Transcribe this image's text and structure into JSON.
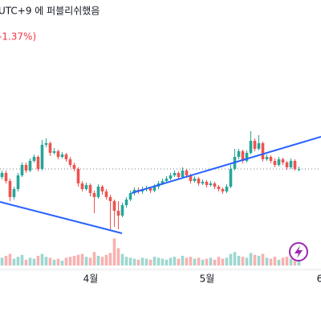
{
  "header": {
    "published": "UTC+9 에 퍼블리쉬했음",
    "change": "-1.37%)"
  },
  "chart_data": {
    "type": "candlestick",
    "up_color": "#26a69a",
    "down_color": "#ef5350",
    "xlim": [
      -0.5,
      79.5
    ],
    "ylim": [
      75,
      400
    ],
    "vlim": [
      0,
      50
    ],
    "xticks": [
      {
        "value": 22.1,
        "label": "4월"
      },
      {
        "value": 51.1,
        "label": "5월"
      },
      {
        "value": 79.2,
        "label": "6"
      }
    ],
    "candles": [
      [
        180,
        188,
        177,
        185
      ],
      [
        185,
        188,
        172,
        175
      ],
      [
        175,
        178,
        150,
        155
      ],
      [
        155,
        168,
        152,
        165
      ],
      [
        165,
        185,
        162,
        182
      ],
      [
        182,
        198,
        180,
        195
      ],
      [
        195,
        198,
        185,
        188
      ],
      [
        188,
        203,
        186,
        200
      ],
      [
        200,
        208,
        198,
        205
      ],
      [
        205,
        207,
        187,
        190
      ],
      [
        190,
        226,
        188,
        220
      ],
      [
        220,
        228,
        217,
        222
      ],
      [
        222,
        224,
        206,
        210
      ],
      [
        210,
        216,
        208,
        212
      ],
      [
        212,
        214,
        202,
        205
      ],
      [
        205,
        211,
        203,
        208
      ],
      [
        208,
        210,
        199,
        202
      ],
      [
        202,
        205,
        192,
        195
      ],
      [
        195,
        198,
        187,
        190
      ],
      [
        190,
        192,
        168,
        172
      ],
      [
        172,
        175,
        162,
        165
      ],
      [
        165,
        173,
        163,
        170
      ],
      [
        170,
        172,
        156,
        160
      ],
      [
        160,
        163,
        135,
        155
      ],
      [
        155,
        171,
        153,
        168
      ],
      [
        168,
        170,
        158,
        162
      ],
      [
        162,
        165,
        152,
        155
      ],
      [
        155,
        158,
        115,
        150
      ],
      [
        150,
        152,
        118,
        138
      ],
      [
        138,
        150,
        115,
        132
      ],
      [
        132,
        148,
        130,
        145
      ],
      [
        145,
        155,
        142,
        152
      ],
      [
        152,
        163,
        150,
        160
      ],
      [
        160,
        167,
        157,
        164
      ],
      [
        164,
        167,
        159,
        162
      ],
      [
        162,
        168,
        159,
        165
      ],
      [
        165,
        169,
        162,
        166
      ],
      [
        166,
        168,
        160,
        163
      ],
      [
        163,
        171,
        161,
        168
      ],
      [
        168,
        175,
        165,
        172
      ],
      [
        172,
        178,
        170,
        175
      ],
      [
        175,
        181,
        172,
        178
      ],
      [
        178,
        185,
        176,
        182
      ],
      [
        182,
        188,
        180,
        185
      ],
      [
        185,
        187,
        177,
        180
      ],
      [
        180,
        192,
        178,
        188
      ],
      [
        188,
        190,
        179,
        182
      ],
      [
        182,
        184,
        172,
        175
      ],
      [
        175,
        181,
        173,
        178
      ],
      [
        178,
        180,
        169,
        172
      ],
      [
        172,
        177,
        170,
        174
      ],
      [
        174,
        176,
        167,
        170
      ],
      [
        170,
        175,
        168,
        172
      ],
      [
        172,
        174,
        165,
        168
      ],
      [
        168,
        170,
        162,
        165
      ],
      [
        165,
        167,
        159,
        162
      ],
      [
        162,
        171,
        160,
        168
      ],
      [
        168,
        195,
        166,
        190
      ],
      [
        190,
        215,
        188,
        205
      ],
      [
        205,
        215,
        202,
        212
      ],
      [
        212,
        214,
        197,
        200
      ],
      [
        200,
        213,
        198,
        210
      ],
      [
        210,
        237,
        208,
        225
      ],
      [
        225,
        228,
        212,
        215
      ],
      [
        215,
        232,
        213,
        222
      ],
      [
        222,
        224,
        199,
        202
      ],
      [
        202,
        208,
        200,
        205
      ],
      [
        205,
        207,
        197,
        200
      ],
      [
        200,
        203,
        192,
        195
      ],
      [
        195,
        205,
        193,
        202
      ],
      [
        202,
        204,
        195,
        198
      ],
      [
        198,
        200,
        189,
        192
      ],
      [
        192,
        203,
        190,
        200
      ],
      [
        200,
        202,
        188,
        190
      ],
      [
        190,
        193,
        187,
        190
      ]
    ],
    "volumes": [
      8,
      10,
      12,
      7,
      9,
      11,
      6,
      8,
      7,
      10,
      12,
      9,
      8,
      6,
      7,
      5,
      8,
      9,
      10,
      11,
      12,
      9,
      8,
      14,
      10,
      9,
      11,
      13,
      28,
      18,
      12,
      9,
      8,
      7,
      6,
      8,
      7,
      6,
      9,
      8,
      7,
      6,
      8,
      9,
      7,
      10,
      8,
      9,
      7,
      8,
      6,
      7,
      8,
      6,
      9,
      7,
      8,
      12,
      14,
      10,
      9,
      8,
      13,
      11,
      10,
      12,
      8,
      7,
      9,
      6,
      8,
      9,
      7,
      8,
      6
    ]
  }
}
